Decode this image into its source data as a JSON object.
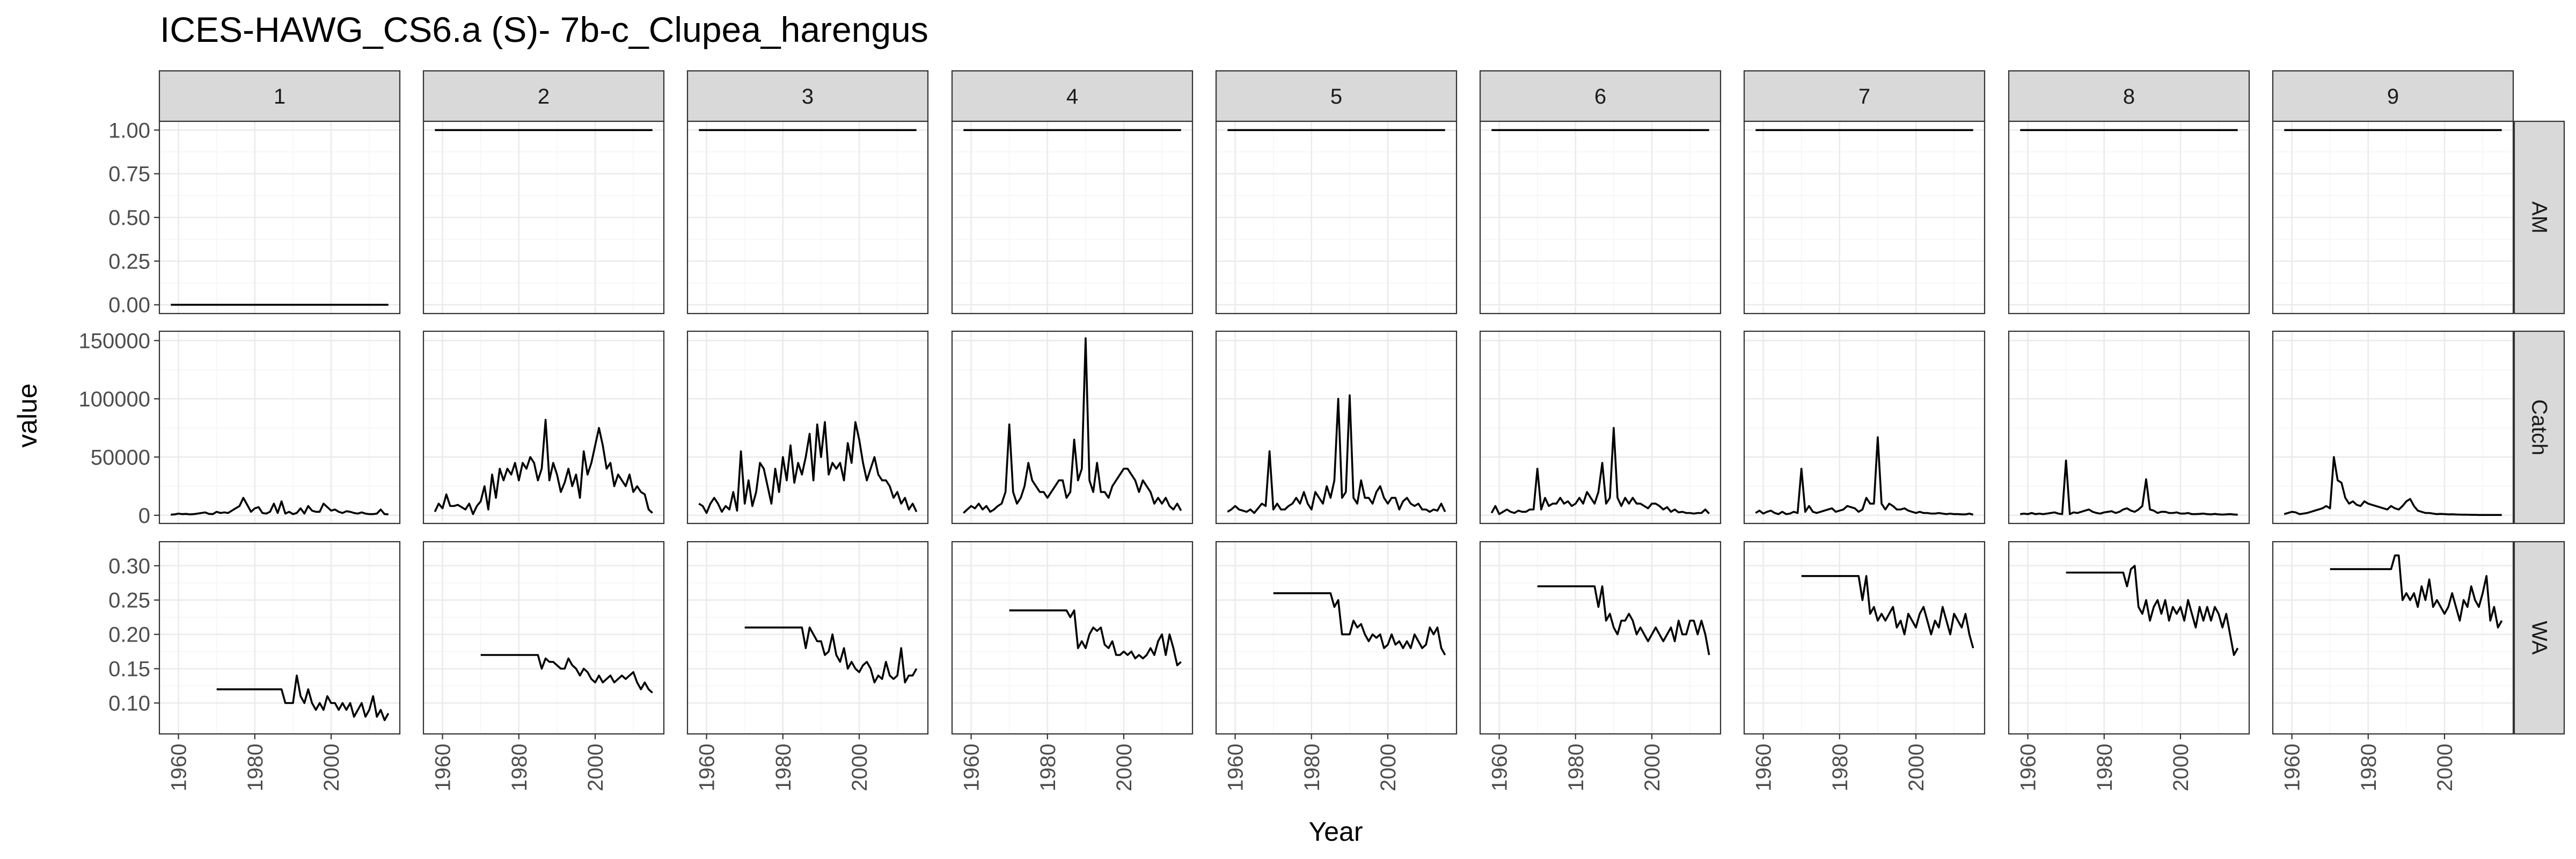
{
  "chart_data": {
    "type": "line",
    "title": "ICES-HAWG_CS6.a (S)- 7b-c_Clupea_harengus",
    "xlabel": "Year",
    "ylabel": "value",
    "xlim": [
      1955,
      2018
    ],
    "x_ticks": [
      1960,
      1980,
      2000
    ],
    "x_tick_labels": [
      "1960",
      "1980",
      "2000"
    ],
    "grid": true,
    "facet_columns": [
      "1",
      "2",
      "3",
      "4",
      "5",
      "6",
      "7",
      "8",
      "9"
    ],
    "facet_rows": [
      "AM",
      "Catch",
      "WA"
    ],
    "row_scales": {
      "AM": {
        "ylim": [
          -0.05,
          1.05
        ],
        "ticks": [
          0,
          0.25,
          0.5,
          0.75,
          1
        ],
        "tick_labels": [
          "0.00",
          "0.25",
          "0.50",
          "0.75",
          "1.00"
        ]
      },
      "Catch": {
        "ylim": [
          -7000,
          158000
        ],
        "ticks": [
          0,
          50000,
          100000,
          150000
        ],
        "tick_labels": [
          "0",
          "50000",
          "100000",
          "150000"
        ]
      },
      "WA": {
        "ylim": [
          0.055,
          0.335
        ],
        "ticks": [
          0.1,
          0.15,
          0.2,
          0.25,
          0.3
        ],
        "tick_labels": [
          "0.10",
          "0.15",
          "0.20",
          "0.25",
          "0.30"
        ]
      }
    },
    "years": [
      1958,
      1959,
      1960,
      1961,
      1962,
      1963,
      1964,
      1965,
      1966,
      1967,
      1968,
      1969,
      1970,
      1971,
      1972,
      1973,
      1974,
      1975,
      1976,
      1977,
      1978,
      1979,
      1980,
      1981,
      1982,
      1983,
      1984,
      1985,
      1986,
      1987,
      1988,
      1989,
      1990,
      1991,
      1992,
      1993,
      1994,
      1995,
      1996,
      1997,
      1998,
      1999,
      2000,
      2001,
      2002,
      2003,
      2004,
      2005,
      2006,
      2007,
      2008,
      2009,
      2010,
      2011,
      2012,
      2013,
      2014,
      2015
    ],
    "wa_years": [
      1970,
      1971,
      1972,
      1973,
      1974,
      1975,
      1976,
      1977,
      1978,
      1979,
      1980,
      1981,
      1982,
      1983,
      1984,
      1985,
      1986,
      1987,
      1988,
      1989,
      1990,
      1991,
      1992,
      1993,
      1994,
      1995,
      1996,
      1997,
      1998,
      1999,
      2000,
      2001,
      2002,
      2003,
      2004,
      2005,
      2006,
      2007,
      2008,
      2009,
      2010,
      2011,
      2012,
      2013,
      2014,
      2015
    ],
    "am_values": [
      0,
      1,
      1,
      1,
      1,
      1,
      1,
      1,
      1
    ],
    "catch": [
      [
        500,
        800,
        1500,
        1000,
        1200,
        800,
        1000,
        1500,
        2000,
        2500,
        1200,
        1000,
        3000,
        2000,
        2500,
        2000,
        4000,
        6000,
        8000,
        15000,
        9000,
        3000,
        6000,
        7000,
        2000,
        1500,
        3000,
        10000,
        2000,
        12000,
        1500,
        3000,
        1000,
        2000,
        6000,
        1500,
        8000,
        4000,
        3000,
        3000,
        10000,
        7000,
        4000,
        5000,
        3000,
        2000,
        3500,
        3000,
        2000,
        1500,
        2500,
        1500,
        1000,
        1000,
        1500,
        5000,
        1000,
        800
      ],
      [
        3000,
        10000,
        6000,
        18000,
        8000,
        8000,
        9000,
        7000,
        5000,
        10000,
        1000,
        8000,
        12000,
        25000,
        5000,
        35000,
        15000,
        40000,
        30000,
        40000,
        35000,
        45000,
        30000,
        45000,
        40000,
        50000,
        45000,
        30000,
        40000,
        82000,
        30000,
        45000,
        35000,
        20000,
        28000,
        40000,
        25000,
        35000,
        15000,
        55000,
        35000,
        45000,
        60000,
        75000,
        60000,
        40000,
        45000,
        25000,
        35000,
        30000,
        25000,
        35000,
        20000,
        25000,
        20000,
        18000,
        5000,
        2000
      ],
      [
        10000,
        8000,
        2000,
        10000,
        15000,
        10000,
        3000,
        8000,
        5000,
        20000,
        4000,
        55000,
        10000,
        30000,
        8000,
        20000,
        45000,
        40000,
        25000,
        10000,
        40000,
        20000,
        50000,
        30000,
        60000,
        28000,
        45000,
        35000,
        50000,
        70000,
        30000,
        78000,
        50000,
        80000,
        35000,
        45000,
        40000,
        45000,
        30000,
        62000,
        45000,
        80000,
        65000,
        45000,
        30000,
        40000,
        50000,
        35000,
        30000,
        30000,
        25000,
        15000,
        20000,
        10000,
        15000,
        5000,
        10000,
        3000
      ],
      [
        2000,
        5000,
        8000,
        6000,
        10000,
        5000,
        8000,
        3000,
        5000,
        8000,
        10000,
        20000,
        78000,
        20000,
        10000,
        15000,
        25000,
        45000,
        30000,
        25000,
        20000,
        20000,
        15000,
        20000,
        25000,
        30000,
        30000,
        15000,
        20000,
        65000,
        30000,
        40000,
        152000,
        30000,
        20000,
        45000,
        20000,
        20000,
        15000,
        25000,
        30000,
        35000,
        40000,
        40000,
        35000,
        30000,
        20000,
        30000,
        25000,
        20000,
        10000,
        15000,
        10000,
        15000,
        8000,
        5000,
        10000,
        4000
      ],
      [
        3000,
        5000,
        8000,
        5000,
        4000,
        3000,
        5000,
        2000,
        6000,
        10000,
        8000,
        55000,
        5000,
        10000,
        5000,
        5000,
        8000,
        10000,
        15000,
        10000,
        20000,
        10000,
        5000,
        20000,
        15000,
        10000,
        25000,
        15000,
        30000,
        100000,
        15000,
        20000,
        103000,
        15000,
        10000,
        30000,
        15000,
        15000,
        10000,
        20000,
        25000,
        15000,
        10000,
        15000,
        15000,
        5000,
        12000,
        15000,
        10000,
        8000,
        10000,
        5000,
        5000,
        3000,
        5000,
        4000,
        10000,
        3000
      ],
      [
        2000,
        8000,
        1000,
        3000,
        5000,
        3000,
        2000,
        4000,
        3000,
        3000,
        5000,
        5000,
        40000,
        5000,
        15000,
        8000,
        10000,
        10000,
        15000,
        10000,
        12000,
        8000,
        10000,
        15000,
        10000,
        20000,
        15000,
        10000,
        20000,
        45000,
        10000,
        15000,
        75000,
        15000,
        8000,
        15000,
        10000,
        15000,
        10000,
        10000,
        8000,
        6000,
        10000,
        10000,
        8000,
        5000,
        7000,
        3000,
        5000,
        2500,
        3000,
        2000,
        2000,
        1500,
        2000,
        2000,
        5000,
        1500
      ],
      [
        2000,
        4000,
        1500,
        3000,
        4000,
        2000,
        1000,
        3000,
        1000,
        1500,
        3000,
        2000,
        40000,
        3000,
        8000,
        3000,
        2000,
        3000,
        4000,
        5000,
        6000,
        3000,
        4000,
        5000,
        8000,
        7000,
        6000,
        3000,
        5000,
        15000,
        10000,
        10000,
        67000,
        10000,
        5000,
        10000,
        8000,
        5000,
        5000,
        6000,
        4000,
        3000,
        2000,
        3000,
        2000,
        2000,
        1500,
        1500,
        2000,
        1500,
        1000,
        1500,
        1000,
        1000,
        800,
        800,
        1500,
        500
      ],
      [
        1000,
        1500,
        1000,
        2000,
        1000,
        1500,
        1000,
        1500,
        2000,
        2500,
        1500,
        1000,
        47000,
        1000,
        2500,
        2000,
        3000,
        4000,
        5000,
        3000,
        2000,
        1500,
        2500,
        3000,
        3500,
        2000,
        3000,
        5000,
        6000,
        4000,
        3000,
        5000,
        8000,
        31000,
        5000,
        4000,
        2000,
        3000,
        3000,
        2000,
        2000,
        2500,
        1500,
        1500,
        2000,
        1000,
        1000,
        1200,
        1500,
        1000,
        800,
        1200,
        800,
        600,
        800,
        1000,
        700,
        500
      ],
      [
        1000,
        2000,
        3000,
        2500,
        1000,
        1500,
        2000,
        3000,
        4000,
        5000,
        6000,
        8000,
        6000,
        50000,
        30000,
        28000,
        15000,
        10000,
        12000,
        9000,
        8000,
        12000,
        10000,
        9000,
        8000,
        7000,
        6000,
        5000,
        8000,
        6000,
        5000,
        8000,
        12000,
        14000,
        8000,
        4000,
        3000,
        2000,
        2000,
        1500,
        1000,
        1200,
        1000,
        800,
        900,
        700,
        600,
        500,
        500,
        400,
        400,
        300,
        300,
        300,
        300,
        300,
        300,
        300
      ]
    ],
    "wa": [
      [
        0.12,
        0.12,
        0.12,
        0.12,
        0.12,
        0.12,
        0.12,
        0.12,
        0.12,
        0.12,
        0.12,
        0.12,
        0.12,
        0.12,
        0.12,
        0.12,
        0.12,
        0.12,
        0.1,
        0.1,
        0.1,
        0.14,
        0.11,
        0.1,
        0.12,
        0.1,
        0.09,
        0.1,
        0.09,
        0.11,
        0.1,
        0.1,
        0.09,
        0.1,
        0.09,
        0.1,
        0.08,
        0.09,
        0.1,
        0.08,
        0.09,
        0.11,
        0.08,
        0.09,
        0.075,
        0.085
      ],
      [
        0.17,
        0.17,
        0.17,
        0.17,
        0.17,
        0.17,
        0.17,
        0.17,
        0.17,
        0.17,
        0.17,
        0.17,
        0.17,
        0.17,
        0.17,
        0.17,
        0.15,
        0.165,
        0.16,
        0.16,
        0.155,
        0.15,
        0.15,
        0.165,
        0.155,
        0.15,
        0.14,
        0.15,
        0.145,
        0.135,
        0.13,
        0.14,
        0.13,
        0.135,
        0.14,
        0.13,
        0.135,
        0.14,
        0.135,
        0.14,
        0.145,
        0.13,
        0.12,
        0.13,
        0.12,
        0.115
      ],
      [
        0.21,
        0.21,
        0.21,
        0.21,
        0.21,
        0.21,
        0.21,
        0.21,
        0.21,
        0.21,
        0.21,
        0.21,
        0.21,
        0.21,
        0.21,
        0.21,
        0.18,
        0.21,
        0.2,
        0.19,
        0.19,
        0.17,
        0.175,
        0.2,
        0.17,
        0.16,
        0.18,
        0.15,
        0.16,
        0.15,
        0.145,
        0.155,
        0.16,
        0.15,
        0.13,
        0.14,
        0.135,
        0.16,
        0.14,
        0.135,
        0.14,
        0.18,
        0.13,
        0.14,
        0.14,
        0.15
      ],
      [
        0.235,
        0.235,
        0.235,
        0.235,
        0.235,
        0.235,
        0.235,
        0.235,
        0.235,
        0.235,
        0.235,
        0.235,
        0.235,
        0.235,
        0.235,
        0.235,
        0.225,
        0.235,
        0.18,
        0.19,
        0.18,
        0.2,
        0.21,
        0.205,
        0.21,
        0.185,
        0.18,
        0.19,
        0.17,
        0.17,
        0.175,
        0.17,
        0.175,
        0.165,
        0.17,
        0.165,
        0.17,
        0.18,
        0.17,
        0.19,
        0.2,
        0.17,
        0.2,
        0.18,
        0.155,
        0.16
      ],
      [
        0.26,
        0.26,
        0.26,
        0.26,
        0.26,
        0.26,
        0.26,
        0.26,
        0.26,
        0.26,
        0.26,
        0.26,
        0.26,
        0.26,
        0.26,
        0.26,
        0.24,
        0.25,
        0.2,
        0.2,
        0.2,
        0.22,
        0.21,
        0.215,
        0.2,
        0.19,
        0.2,
        0.195,
        0.2,
        0.18,
        0.185,
        0.2,
        0.185,
        0.19,
        0.18,
        0.19,
        0.18,
        0.2,
        0.19,
        0.18,
        0.185,
        0.21,
        0.2,
        0.21,
        0.18,
        0.17
      ],
      [
        0.27,
        0.27,
        0.27,
        0.27,
        0.27,
        0.27,
        0.27,
        0.27,
        0.27,
        0.27,
        0.27,
        0.27,
        0.27,
        0.27,
        0.27,
        0.27,
        0.24,
        0.27,
        0.22,
        0.23,
        0.21,
        0.2,
        0.22,
        0.22,
        0.23,
        0.22,
        0.2,
        0.21,
        0.2,
        0.19,
        0.2,
        0.21,
        0.2,
        0.19,
        0.2,
        0.21,
        0.19,
        0.22,
        0.2,
        0.2,
        0.22,
        0.22,
        0.2,
        0.22,
        0.2,
        0.17
      ],
      [
        0.285,
        0.285,
        0.285,
        0.285,
        0.285,
        0.285,
        0.285,
        0.285,
        0.285,
        0.285,
        0.285,
        0.285,
        0.285,
        0.285,
        0.285,
        0.285,
        0.25,
        0.285,
        0.23,
        0.24,
        0.22,
        0.23,
        0.22,
        0.23,
        0.24,
        0.21,
        0.22,
        0.2,
        0.23,
        0.22,
        0.21,
        0.23,
        0.24,
        0.22,
        0.2,
        0.22,
        0.21,
        0.24,
        0.22,
        0.2,
        0.23,
        0.22,
        0.21,
        0.23,
        0.2,
        0.18
      ],
      [
        0.29,
        0.29,
        0.29,
        0.29,
        0.29,
        0.29,
        0.29,
        0.29,
        0.29,
        0.29,
        0.29,
        0.29,
        0.29,
        0.29,
        0.29,
        0.29,
        0.27,
        0.295,
        0.3,
        0.24,
        0.23,
        0.25,
        0.22,
        0.24,
        0.25,
        0.23,
        0.25,
        0.22,
        0.24,
        0.23,
        0.24,
        0.22,
        0.25,
        0.23,
        0.21,
        0.24,
        0.22,
        0.24,
        0.22,
        0.24,
        0.23,
        0.21,
        0.23,
        0.2,
        0.17,
        0.18
      ],
      [
        0.295,
        0.295,
        0.295,
        0.295,
        0.295,
        0.295,
        0.295,
        0.295,
        0.295,
        0.295,
        0.295,
        0.295,
        0.295,
        0.295,
        0.295,
        0.295,
        0.295,
        0.315,
        0.315,
        0.25,
        0.26,
        0.25,
        0.26,
        0.24,
        0.27,
        0.25,
        0.28,
        0.24,
        0.25,
        0.24,
        0.23,
        0.24,
        0.26,
        0.24,
        0.22,
        0.25,
        0.24,
        0.27,
        0.25,
        0.24,
        0.26,
        0.285,
        0.22,
        0.24,
        0.21,
        0.22
      ]
    ]
  }
}
